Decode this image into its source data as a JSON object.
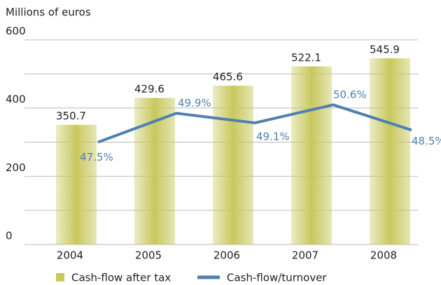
{
  "chart_data": {
    "type": "bar",
    "y_axis_label": "Millions of euros",
    "categories": [
      "2004",
      "2005",
      "2006",
      "2007",
      "2008"
    ],
    "series": [
      {
        "name": "Cash-flow after tax",
        "type": "bar",
        "color": "#c8c85e",
        "values": [
          350.7,
          429.6,
          465.6,
          522.1,
          545.9
        ]
      },
      {
        "name": "Cash-flow/turnover",
        "type": "line",
        "axis": "y2",
        "color": "#4f81b0",
        "values": [
          47.5,
          49.9,
          49.1,
          50.6,
          48.5
        ],
        "value_labels": [
          "47.5%",
          "49.9%",
          "49.1%",
          "50.6%",
          "48.5%"
        ]
      }
    ],
    "ylim": [
      0,
      600
    ],
    "yticks": [
      0,
      200,
      400,
      600
    ],
    "minor_yticks": [
      100,
      300,
      500
    ],
    "y2lim": [
      39,
      56
    ],
    "grid": true
  }
}
